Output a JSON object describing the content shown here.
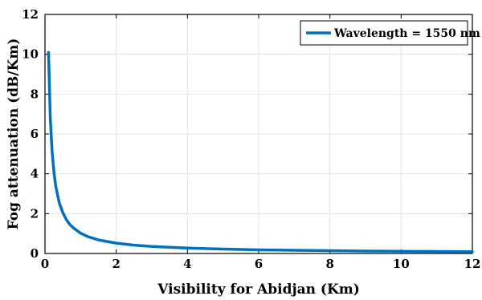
{
  "chart_data": {
    "type": "line",
    "xlabel": "Visibility for Abidjan (Km)",
    "ylabel": "Fog attenuation (dB/Km)",
    "xlim": [
      0,
      12
    ],
    "ylim": [
      0,
      12
    ],
    "xticks": [
      "0",
      "2",
      "4",
      "6",
      "8",
      "10",
      "12"
    ],
    "yticks": [
      "0",
      "2",
      "4",
      "6",
      "8",
      "10",
      "12"
    ],
    "grid": true,
    "legend_position": "top-right",
    "series": [
      {
        "name": "Wavelength = 1550 nm",
        "color": "#0072bd",
        "x": [
          0.1,
          0.15,
          0.2,
          0.25,
          0.3,
          0.4,
          0.5,
          0.6,
          0.7,
          0.8,
          1.0,
          1.2,
          1.5,
          2.0,
          2.5,
          3.0,
          4.0,
          5.0,
          6.0,
          7.0,
          8.0,
          9.0,
          10.0,
          11.0,
          12.0
        ],
        "y": [
          10.1,
          6.8,
          5.1,
          4.1,
          3.4,
          2.55,
          2.05,
          1.7,
          1.45,
          1.28,
          1.02,
          0.85,
          0.68,
          0.52,
          0.42,
          0.35,
          0.27,
          0.22,
          0.18,
          0.16,
          0.14,
          0.12,
          0.11,
          0.1,
          0.09
        ]
      }
    ]
  }
}
